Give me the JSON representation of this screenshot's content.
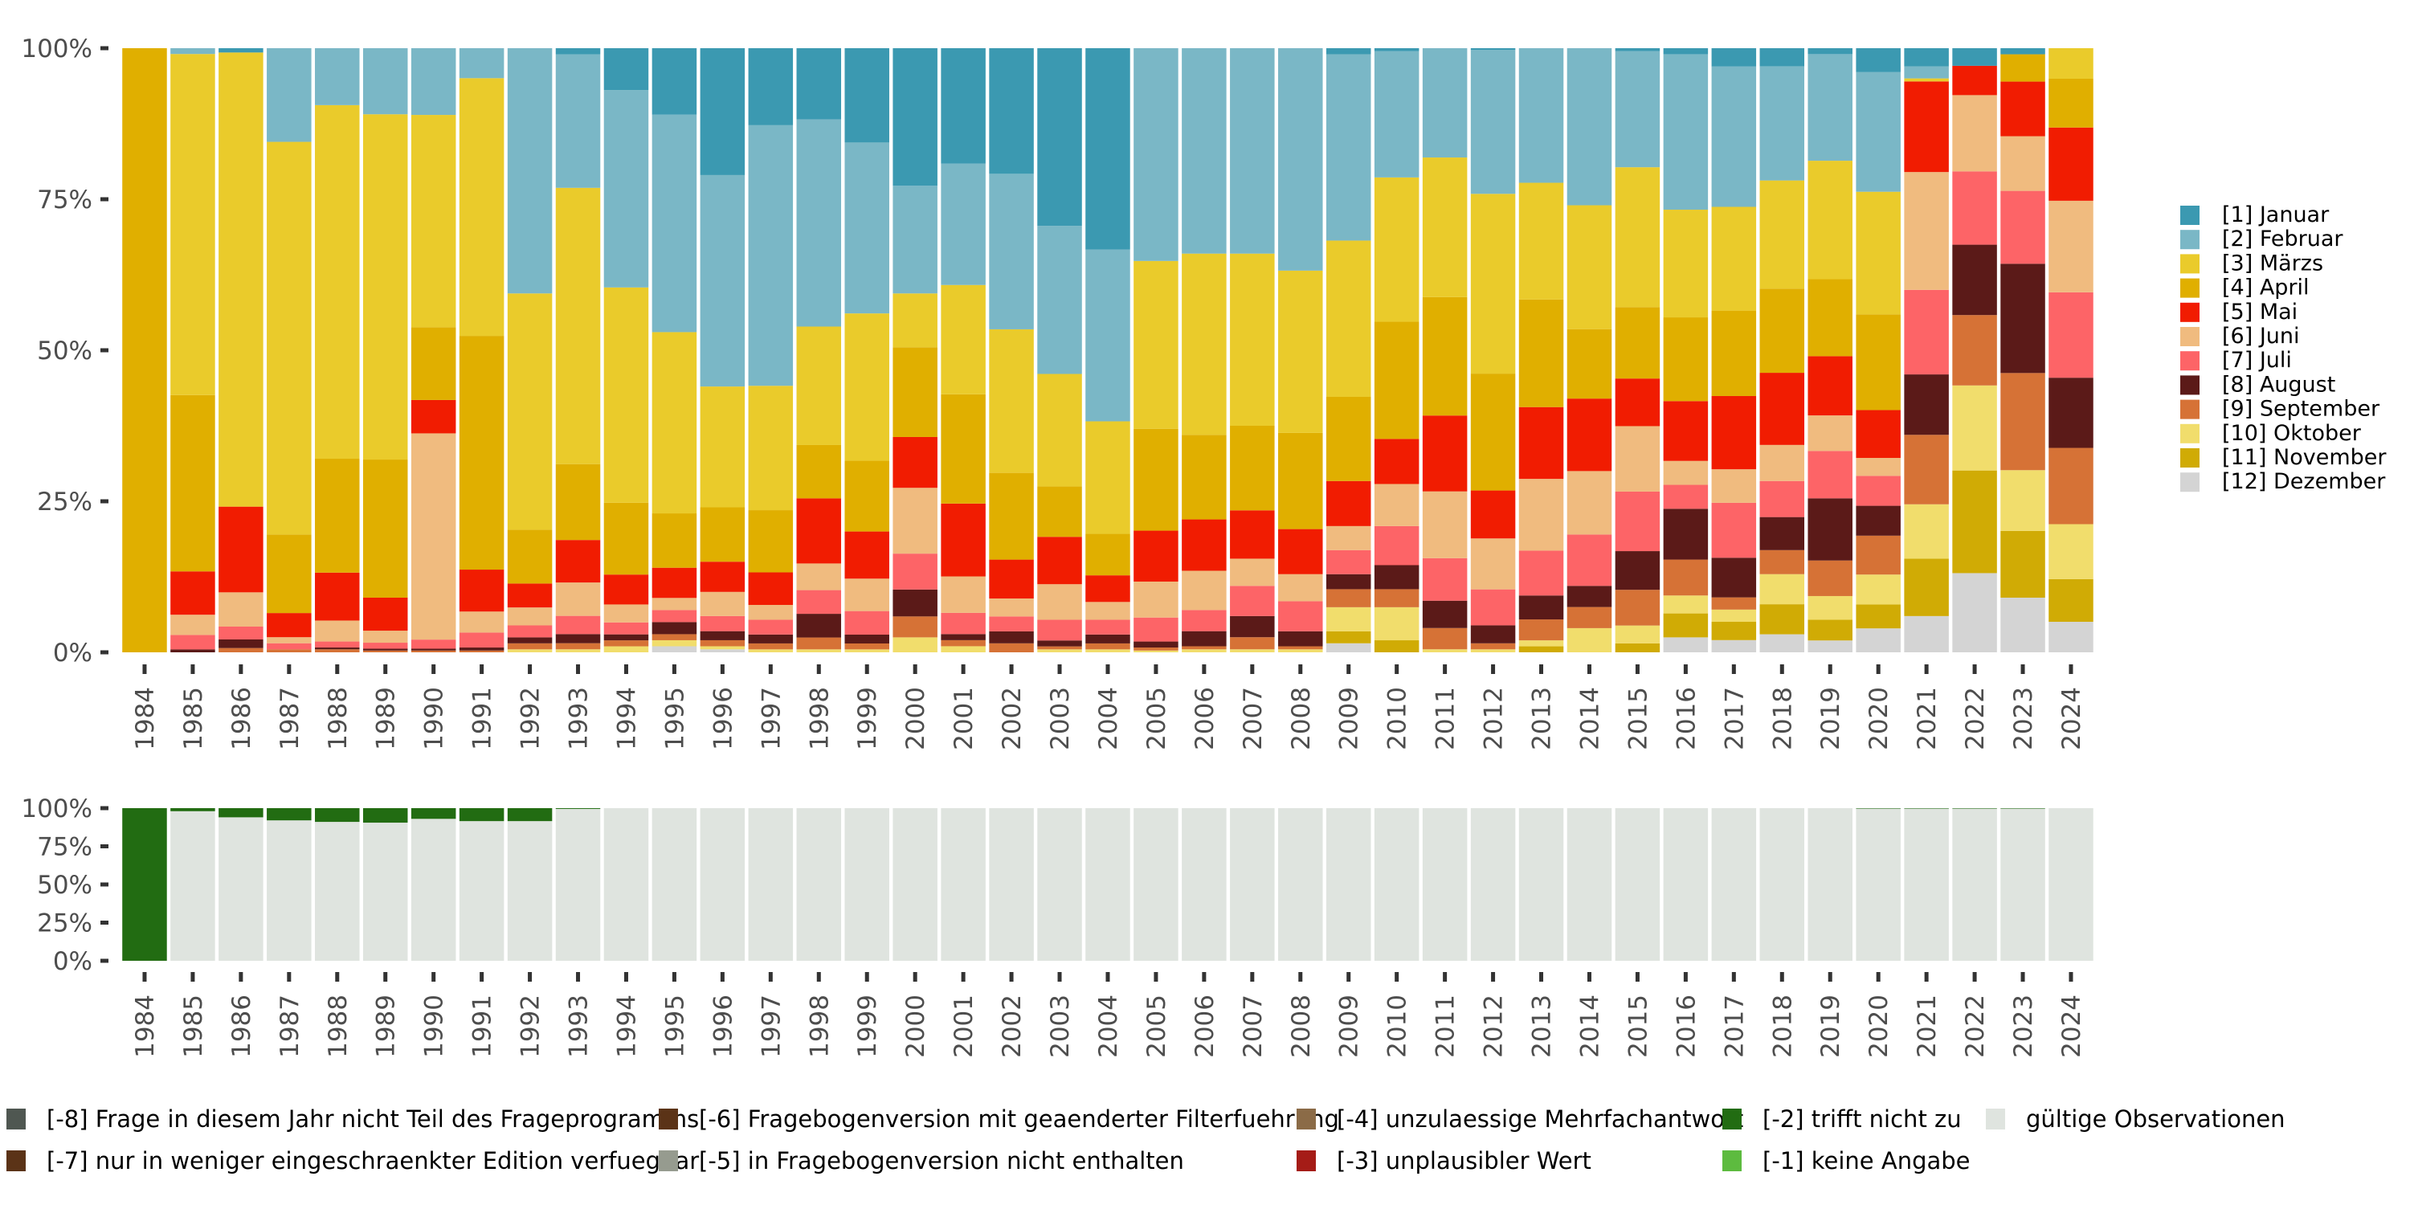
{
  "chart_data": [
    {
      "type": "bar",
      "stacked": "percent",
      "title": "",
      "xlabel": "",
      "ylabel": "",
      "ylim": [
        0,
        100
      ],
      "y_ticks": [
        "0%",
        "25%",
        "50%",
        "75%",
        "100%"
      ],
      "categories": [
        "1984",
        "1985",
        "1986",
        "1987",
        "1988",
        "1989",
        "1990",
        "1991",
        "1992",
        "1993",
        "1994",
        "1995",
        "1996",
        "1997",
        "1998",
        "1999",
        "2000",
        "2001",
        "2002",
        "2003",
        "2004",
        "2005",
        "2006",
        "2007",
        "2008",
        "2009",
        "2010",
        "2011",
        "2012",
        "2013",
        "2014",
        "2015",
        "2016",
        "2017",
        "2018",
        "2019",
        "2020",
        "2021",
        "2022",
        "2023",
        "2024"
      ],
      "legend_position": "right",
      "series": [
        {
          "name": "[1] Januar",
          "color": "#3b99b1",
          "values": [
            0,
            0,
            0.5,
            0,
            0,
            0,
            0,
            0,
            0,
            1,
            7,
            11,
            21,
            13,
            12,
            16,
            23,
            19,
            21,
            30,
            34,
            0,
            0,
            0,
            0,
            1,
            0.5,
            0,
            0.3,
            0,
            0,
            0.5,
            1,
            3,
            3,
            1,
            4,
            3,
            3,
            1,
            0
          ]
        },
        {
          "name": "[2] Februar",
          "color": "#7ab7c6",
          "values": [
            0,
            1,
            0,
            15.5,
            9.5,
            11,
            11,
            5,
            41,
            22,
            33,
            36,
            35,
            44,
            35,
            29,
            18,
            20,
            26,
            25,
            29,
            35.5,
            34,
            34,
            37,
            31,
            21,
            18,
            24,
            22.5,
            26,
            19.5,
            26,
            23,
            19,
            18,
            20,
            2,
            0,
            0,
            0
          ]
        },
        {
          "name": "[3] Märzs",
          "color": "#eacb2b",
          "values": [
            0,
            59,
            53,
            65,
            59,
            57.5,
            35,
            43,
            39.5,
            45.5,
            36,
            30,
            20,
            21,
            20,
            25,
            9,
            18,
            24,
            19,
            19,
            28,
            30,
            28.5,
            27,
            26,
            24,
            23,
            30,
            19.5,
            20.5,
            23.5,
            18,
            17,
            18,
            20,
            20.5,
            0.5,
            0,
            0,
            5
          ]
        },
        {
          "name": "[4] April",
          "color": "#e0af00",
          "values": [
            27,
            30.5,
            0,
            13,
            19,
            23,
            12,
            39,
            9,
            12.5,
            12,
            9,
            9,
            10.5,
            9,
            12,
            15,
            18,
            14.5,
            8.5,
            7,
            17,
            14,
            14,
            16,
            14,
            19.5,
            19.5,
            19.5,
            18,
            11.5,
            12,
            14,
            14,
            14,
            13,
            16,
            0,
            0,
            4.5,
            8
          ]
        },
        {
          "name": "[5] Mai",
          "color": "#f11c01",
          "values": [
            0,
            7.5,
            10,
            4,
            8,
            5.5,
            5.5,
            7,
            4,
            7,
            5,
            5,
            5,
            5.5,
            11,
            8,
            8.5,
            12,
            6.5,
            8,
            4.5,
            8.5,
            8.5,
            8,
            7.5,
            7.5,
            7.5,
            12.5,
            8,
            12,
            12,
            8,
            10,
            12,
            12,
            10,
            8,
            15,
            5,
            9,
            12
          ]
        },
        {
          "name": "[6] Juni",
          "color": "#f0bb7f",
          "values": [
            0,
            3.5,
            4,
            1,
            3.5,
            2,
            34,
            3.5,
            3,
            5.5,
            3,
            2,
            4,
            2.5,
            4.5,
            5.5,
            11,
            6,
            3,
            6,
            3,
            6,
            6.5,
            4.5,
            4.5,
            4,
            7,
            11,
            8.5,
            12,
            10.5,
            11,
            4,
            5.5,
            6,
            6,
            3,
            19.5,
            13,
            9,
            15
          ]
        },
        {
          "name": "[7] Juli",
          "color": "#fd6467",
          "values": [
            0,
            2.5,
            1.5,
            1,
            1,
            1,
            1.5,
            2.5,
            2,
            3,
            2,
            2,
            2.5,
            2.5,
            4,
            4,
            6,
            3.5,
            2.5,
            3.5,
            2.5,
            4,
            3.5,
            5,
            5,
            4,
            6.5,
            7,
            6,
            7.5,
            8.5,
            10,
            4,
            9,
            6,
            8,
            5,
            14,
            12.5,
            12,
            14
          ]
        },
        {
          "name": "[8] August",
          "color": "#5b1a18",
          "values": [
            0,
            0.5,
            1,
            0,
            0.3,
            0.3,
            0.3,
            0.5,
            1,
            1.5,
            1,
            2,
            1.5,
            1.5,
            4,
            1.5,
            4.5,
            1,
            2,
            1,
            1.5,
            1,
            2.5,
            3.5,
            2.5,
            2.5,
            4,
            4.5,
            3,
            4,
            3.5,
            6.5,
            8.5,
            6.5,
            5.5,
            10.5,
            5,
            10,
            12,
            18,
            11.5
          ]
        },
        {
          "name": "[9] September",
          "color": "#d67236",
          "values": [
            0,
            0,
            0.5,
            0.5,
            0.5,
            0.3,
            0.3,
            0.3,
            1,
            1,
            1,
            1,
            1,
            1,
            2,
            1,
            3.5,
            1,
            1.5,
            0.5,
            1,
            0.5,
            0.5,
            2,
            0.5,
            3,
            3,
            3.5,
            1,
            3.5,
            3.5,
            6,
            6,
            2,
            4,
            6,
            6.5,
            11.5,
            12,
            16,
            12.5
          ]
        },
        {
          "name": "[10] Oktober",
          "color": "#f1dd6c",
          "values": [
            0,
            0,
            0,
            0,
            0,
            0,
            0,
            0,
            0.5,
            0.5,
            1,
            1,
            0.5,
            0.5,
            0.5,
            0.5,
            2.5,
            1,
            0,
            0.5,
            0.5,
            0.3,
            0.5,
            0.5,
            0.5,
            4,
            5.5,
            0.5,
            0.5,
            1,
            4,
            3,
            3,
            2,
            5,
            4,
            5,
            9,
            14.5,
            10,
            9
          ]
        },
        {
          "name": "[11] November",
          "color": "#d0ab05",
          "values": [
            0,
            0,
            0,
            0,
            0,
            0,
            0,
            0,
            0,
            0,
            0,
            0,
            0,
            0,
            0,
            0,
            0,
            0,
            0,
            0,
            0,
            0,
            0,
            0,
            0,
            2,
            2,
            0,
            0,
            1,
            0,
            1.5,
            4,
            3,
            5,
            3.5,
            4,
            9.5,
            17.5,
            11,
            7
          ]
        },
        {
          "name": "[12] Dezember",
          "color": "#d4d4d4",
          "values": [
            0,
            0,
            0,
            0,
            0,
            0,
            0,
            0,
            0,
            0,
            0,
            1,
            0.5,
            0,
            0,
            0,
            0,
            0,
            0,
            0,
            0,
            0,
            0,
            0,
            0,
            1.5,
            0,
            0,
            0,
            0,
            0,
            0,
            2.5,
            2,
            3,
            2,
            4,
            6,
            13.5,
            9,
            5
          ]
        }
      ]
    },
    {
      "type": "bar",
      "stacked": "percent",
      "ylim": [
        0,
        100
      ],
      "y_ticks": [
        "0%",
        "25%",
        "50%",
        "75%",
        "100%"
      ],
      "categories": [
        "1984",
        "1985",
        "1986",
        "1987",
        "1988",
        "1989",
        "1990",
        "1991",
        "1992",
        "1993",
        "1994",
        "1995",
        "1996",
        "1997",
        "1998",
        "1999",
        "2000",
        "2001",
        "2002",
        "2003",
        "2004",
        "2005",
        "2006",
        "2007",
        "2008",
        "2009",
        "2010",
        "2011",
        "2012",
        "2013",
        "2014",
        "2015",
        "2016",
        "2017",
        "2018",
        "2019",
        "2020",
        "2021",
        "2022",
        "2023",
        "2024"
      ],
      "legend_position": "bottom",
      "series": [
        {
          "name": "[-8] Frage in diesem Jahr nicht Teil des Frageprogramms",
          "color": "#4f5751",
          "values": [
            0,
            0,
            0,
            0,
            0,
            0,
            0,
            0,
            0,
            0,
            0,
            0,
            0,
            0,
            0,
            0,
            0,
            0,
            0,
            0,
            0,
            0,
            0,
            0,
            0,
            0,
            0,
            0,
            0,
            0,
            0,
            0,
            0,
            0,
            0,
            0,
            0,
            0,
            0,
            0,
            0
          ]
        },
        {
          "name": "[-7] nur in weniger eingeschraenkter Edition verfuegbar",
          "color": "#5b3317",
          "values": [
            0,
            0,
            0,
            0,
            0,
            0,
            0,
            0,
            0,
            0,
            0,
            0,
            0,
            0,
            0,
            0,
            0,
            0,
            0,
            0,
            0,
            0,
            0,
            0,
            0,
            0,
            0,
            0,
            0,
            0,
            0,
            0,
            0,
            0,
            0,
            0,
            0,
            0,
            0,
            0,
            0
          ]
        },
        {
          "name": "[-6] Fragebogenversion mit geaenderter Filterfuehrung",
          "color": "#5b3317",
          "values": [
            0,
            0,
            0,
            0,
            0,
            0,
            0,
            0,
            0,
            0,
            0,
            0,
            0,
            0,
            0,
            0,
            0,
            0,
            0,
            0,
            0,
            0,
            0,
            0,
            0,
            0,
            0,
            0,
            0,
            0,
            0,
            0,
            0,
            0,
            0,
            0,
            0,
            0,
            0,
            0,
            0
          ]
        },
        {
          "name": "[-5] in Fragebogenversion nicht enthalten",
          "color": "#969b8f",
          "values": [
            0,
            0,
            0,
            0,
            0,
            0,
            0,
            0,
            0,
            0,
            0,
            0,
            0,
            0,
            0,
            0,
            0,
            0,
            0,
            0,
            0,
            0,
            0,
            0,
            0,
            0,
            0,
            0,
            0,
            0,
            0,
            0,
            0,
            0,
            0,
            0,
            0,
            0,
            0,
            0,
            0
          ]
        },
        {
          "name": "[-4] unzulaessige Mehrfachantwort",
          "color": "#8b6b47",
          "values": [
            0,
            0,
            0,
            0,
            0,
            0,
            0,
            0,
            0,
            0,
            0,
            0,
            0,
            0,
            0,
            0,
            0,
            0,
            0,
            0,
            0,
            0,
            0,
            0,
            0,
            0,
            0,
            0,
            0,
            0,
            0,
            0,
            0,
            0,
            0,
            0,
            0,
            0,
            0,
            0,
            0
          ]
        },
        {
          "name": "[-3] unplausibler Wert",
          "color": "#a51c17",
          "values": [
            0,
            0,
            0,
            0,
            0,
            0,
            0,
            0,
            0,
            0,
            0,
            0,
            0,
            0,
            0,
            0,
            0,
            0,
            0,
            0,
            0,
            0,
            0,
            0,
            0,
            0,
            0,
            0,
            0,
            0,
            0,
            0,
            0,
            0,
            0,
            0,
            0,
            0,
            0,
            0,
            0
          ]
        },
        {
          "name": "[-2] trifft nicht zu",
          "color": "#226c12",
          "values": [
            100,
            2,
            6,
            8,
            9,
            9.5,
            7,
            8.5,
            8.5,
            0.5,
            0,
            0,
            0,
            0,
            0,
            0,
            0,
            0,
            0,
            0,
            0,
            0,
            0,
            0,
            0,
            0,
            0,
            0,
            0,
            0,
            0,
            0,
            0,
            0,
            0,
            0,
            0.3,
            0.3,
            0.3,
            0.3,
            0
          ]
        },
        {
          "name": "[-1] keine Angabe",
          "color": "#5dbb3f",
          "values": [
            0,
            0,
            0,
            0,
            0,
            0,
            0,
            0,
            0,
            0,
            0,
            0,
            0,
            0,
            0,
            0,
            0,
            0,
            0,
            0,
            0,
            0,
            0,
            0,
            0,
            0,
            0,
            0,
            0,
            0,
            0,
            0,
            0,
            0,
            0,
            0,
            0,
            0,
            0,
            0,
            0
          ]
        },
        {
          "name": "gültige Observationen",
          "color": "#dfe4df",
          "values": [
            0,
            98,
            94,
            92,
            91,
            90.5,
            93,
            91.5,
            91.5,
            99.5,
            100,
            100,
            100,
            100,
            100,
            100,
            100,
            100,
            100,
            100,
            100,
            100,
            100,
            100,
            100,
            100,
            100,
            100,
            100,
            100,
            100,
            100,
            100,
            100,
            100,
            100,
            99.7,
            99.7,
            99.7,
            99.7,
            100
          ]
        }
      ]
    }
  ]
}
